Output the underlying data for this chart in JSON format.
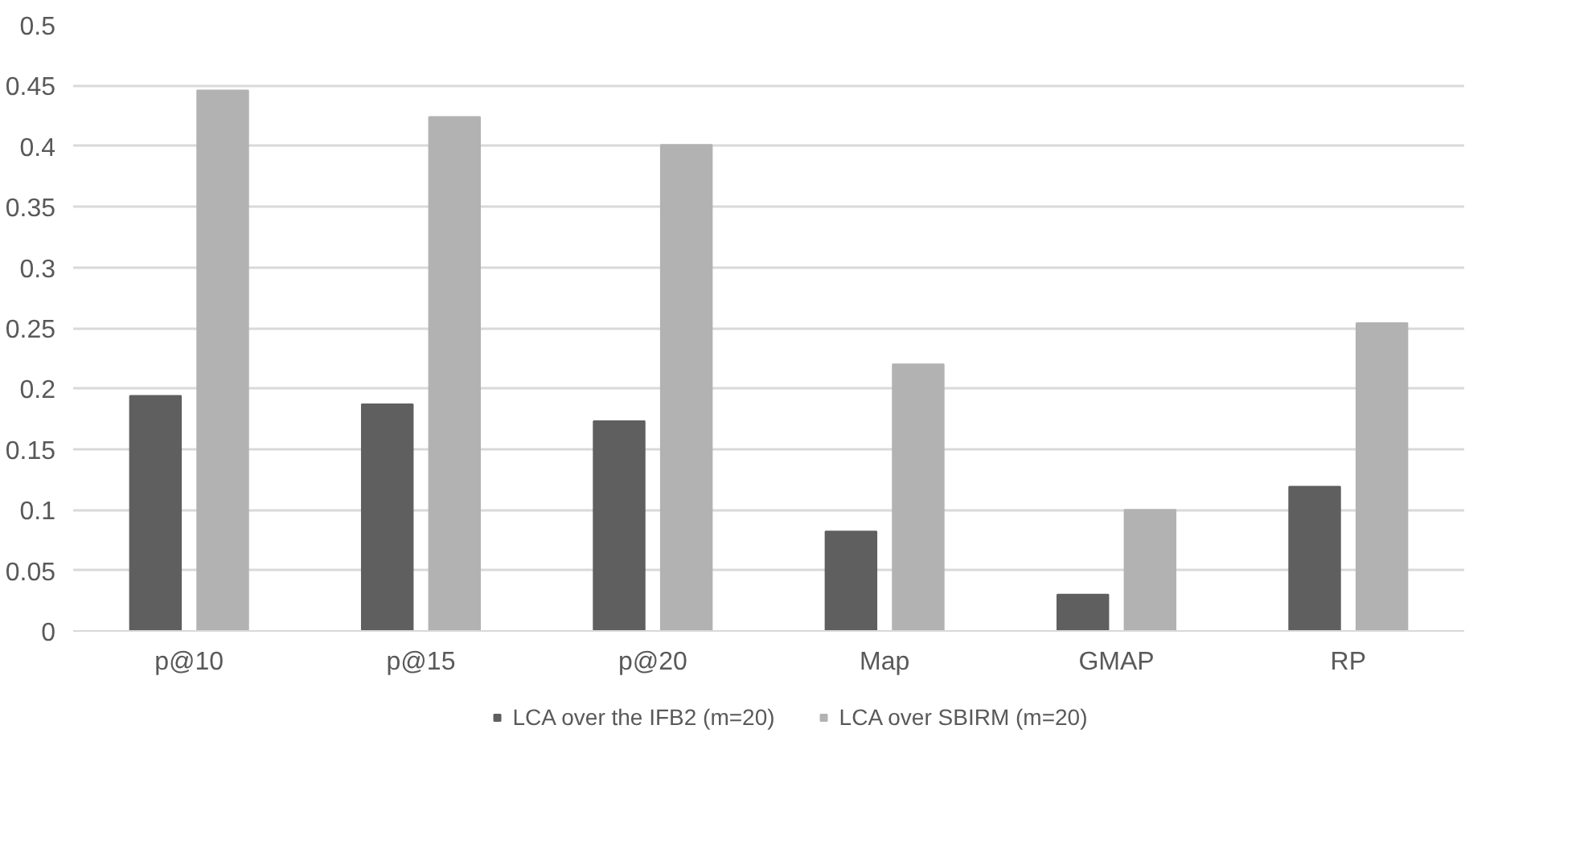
{
  "chart_data": {
    "type": "bar",
    "categories": [
      "p@10",
      "p@15",
      "p@20",
      "Map",
      "GMAP",
      "RP"
    ],
    "series": [
      {
        "name": "LCA over the IFB2 (m=20)",
        "color": "#5f5f5f",
        "values": [
          0.194,
          0.187,
          0.173,
          0.082,
          0.03,
          0.119
        ]
      },
      {
        "name": "LCA over SBIRM (m=20)",
        "color": "#b2b2b2",
        "values": [
          0.446,
          0.424,
          0.401,
          0.22,
          0.1,
          0.254
        ]
      }
    ],
    "ylim": [
      0,
      0.5
    ],
    "yticks": [
      0,
      0.05,
      0.1,
      0.15,
      0.2,
      0.25,
      0.3,
      0.35,
      0.4,
      0.45,
      0.5
    ],
    "grid": "y",
    "legend": "bottom"
  }
}
